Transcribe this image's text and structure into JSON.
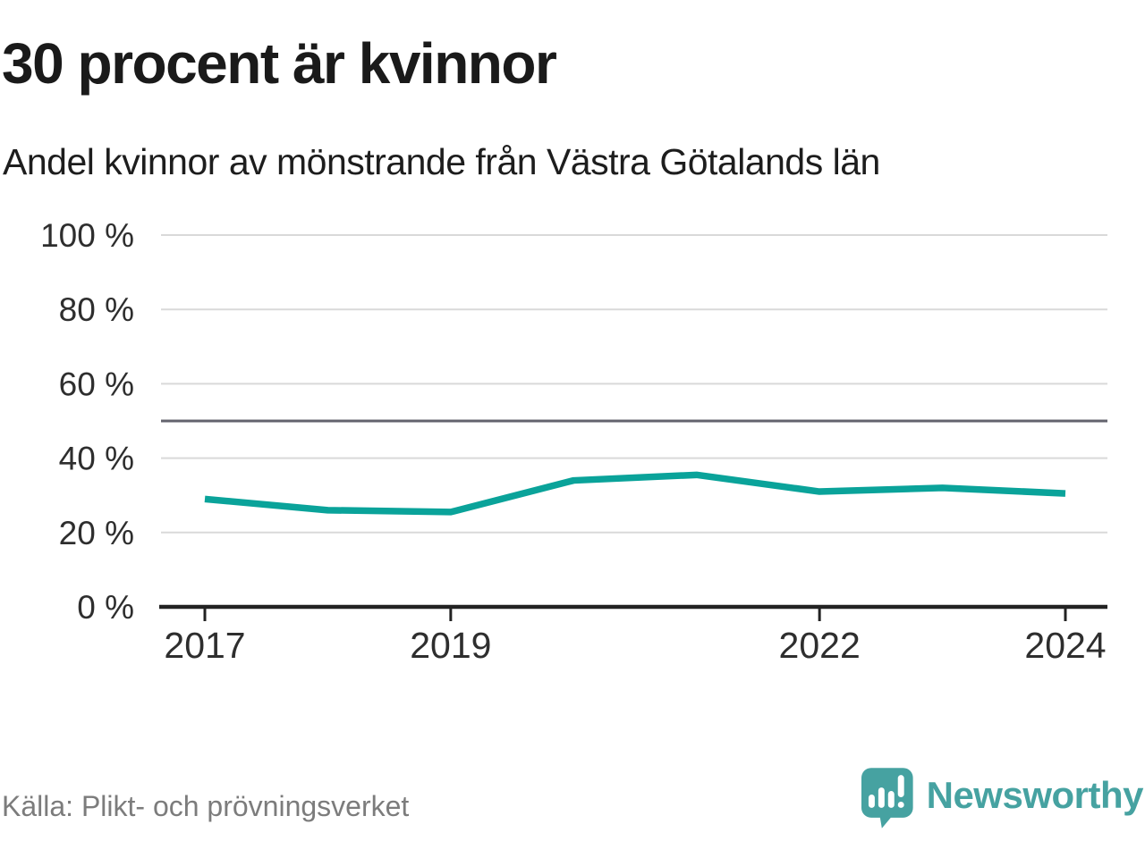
{
  "header": {
    "title": "30 procent är kvinnor",
    "subtitle": "Andel kvinnor av mönstrande från Västra Götalands län"
  },
  "footer": {
    "source": "Källa: Plikt- och prövningsverket",
    "brand_name": "Newsworthy",
    "brand_icon": "newsworthy-speech-bubble-barchart-icon"
  },
  "colors": {
    "series_line": "#0aa39a",
    "gridline": "#d9d9d9",
    "reference_line": "#63636d",
    "axis": "#222222",
    "tick_label": "#2e2e2e",
    "brand_teal": "#46a2a1",
    "source_text": "#7c7c7c"
  },
  "chart_data": {
    "type": "line",
    "title": "30 procent är kvinnor",
    "subtitle": "Andel kvinnor av mönstrande från Västra Götalands län",
    "x": [
      2017,
      2018,
      2019,
      2020,
      2021,
      2022,
      2023,
      2024
    ],
    "series": [
      {
        "name": "Andel kvinnor av mönstrande",
        "values": [
          29,
          26,
          25.5,
          34,
          35.5,
          31,
          32,
          30.5
        ]
      }
    ],
    "unit": "%",
    "ylim": [
      0,
      100
    ],
    "yticks": [
      {
        "value": 0,
        "label": "0 %"
      },
      {
        "value": 20,
        "label": "20 %"
      },
      {
        "value": 40,
        "label": "40 %"
      },
      {
        "value": 60,
        "label": "60 %"
      },
      {
        "value": 80,
        "label": "80 %"
      },
      {
        "value": 100,
        "label": "100 %"
      }
    ],
    "xticks": [
      {
        "value": 2017,
        "label": "2017"
      },
      {
        "value": 2019,
        "label": "2019"
      },
      {
        "value": 2022,
        "label": "2022"
      },
      {
        "value": 2024,
        "label": "2024"
      }
    ],
    "reference_line_value": 50,
    "grid": true,
    "legend": "none"
  }
}
